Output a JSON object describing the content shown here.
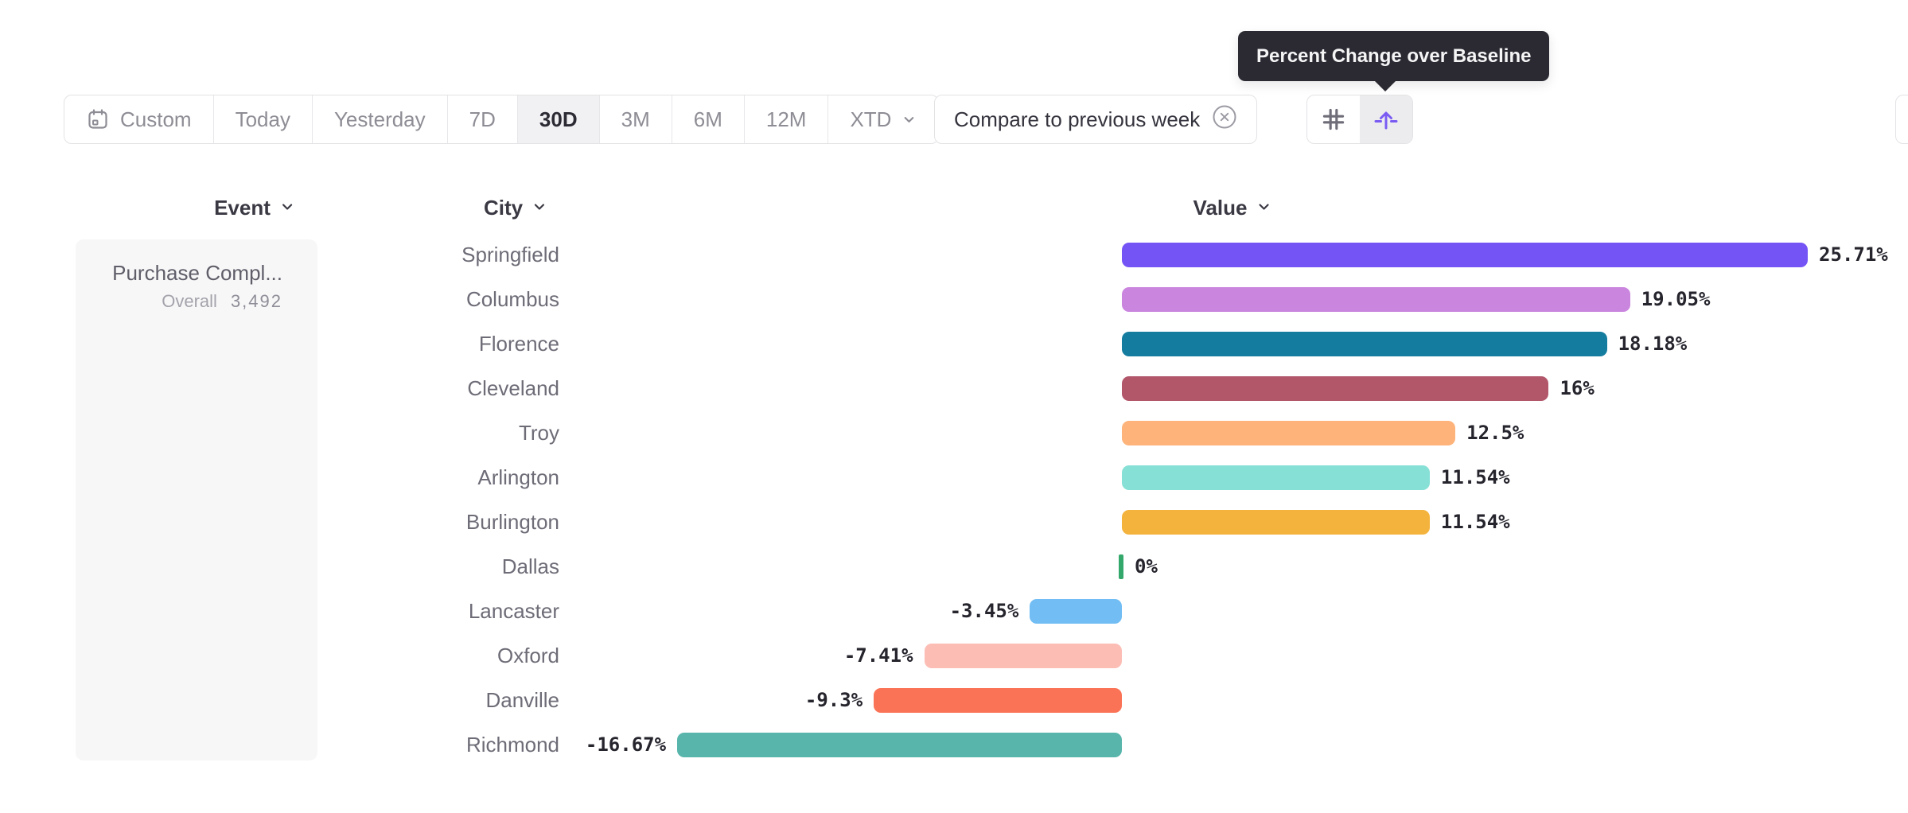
{
  "tooltip": {
    "text": "Percent Change over Baseline"
  },
  "toolbar": {
    "date_ranges": [
      {
        "label": "Custom",
        "icon": "calendar",
        "selected": false
      },
      {
        "label": "Today",
        "selected": false
      },
      {
        "label": "Yesterday",
        "selected": false
      },
      {
        "label": "7D",
        "selected": false
      },
      {
        "label": "30D",
        "selected": true
      },
      {
        "label": "3M",
        "selected": false
      },
      {
        "label": "6M",
        "selected": false
      },
      {
        "label": "12M",
        "selected": false
      },
      {
        "label": "XTD",
        "selected": false,
        "has_chevron": true
      }
    ],
    "compare_chip": {
      "label": "Compare to previous week",
      "dismiss_icon": "circle-x-icon"
    },
    "view_toggle": [
      {
        "icon": "grid-icon",
        "selected": false
      },
      {
        "icon": "baseline-arrow-icon",
        "selected": true,
        "accent": "#7A5BF2"
      }
    ]
  },
  "columns": [
    {
      "label": "Event"
    },
    {
      "label": "City"
    },
    {
      "label": "Value"
    }
  ],
  "event_panel": {
    "event_name": "Purchase Compl...",
    "metric_label": "Overall",
    "metric_value": "3,492"
  },
  "chart_data": {
    "type": "bar",
    "orientation": "horizontal",
    "title": "Percent Change over Baseline",
    "unit": "%",
    "baseline": 0,
    "xlim": [
      -16.67,
      25.71
    ],
    "grid": false,
    "categories": [
      "Springfield",
      "Columbus",
      "Florence",
      "Cleveland",
      "Troy",
      "Arlington",
      "Burlington",
      "Dallas",
      "Lancaster",
      "Oxford",
      "Danville",
      "Richmond"
    ],
    "values": [
      25.71,
      19.05,
      18.18,
      16,
      12.5,
      11.54,
      11.54,
      0,
      -3.45,
      -7.41,
      -9.3,
      -16.67
    ],
    "labels": [
      "25.71%",
      "19.05%",
      "18.18%",
      "16%",
      "12.5%",
      "11.54%",
      "11.54%",
      "0%",
      "-3.45%",
      "-7.41%",
      "-9.3%",
      "-16.67%"
    ],
    "colors": [
      "#7554F6",
      "#CA85DE",
      "#147C9E",
      "#B2566A",
      "#FDB37A",
      "#87E0D6",
      "#F3B33D",
      "#34A76B",
      "#71BDF4",
      "#FCBDB5",
      "#FB7356",
      "#58B5AB"
    ],
    "zero_marker_color": "#34A76B"
  }
}
